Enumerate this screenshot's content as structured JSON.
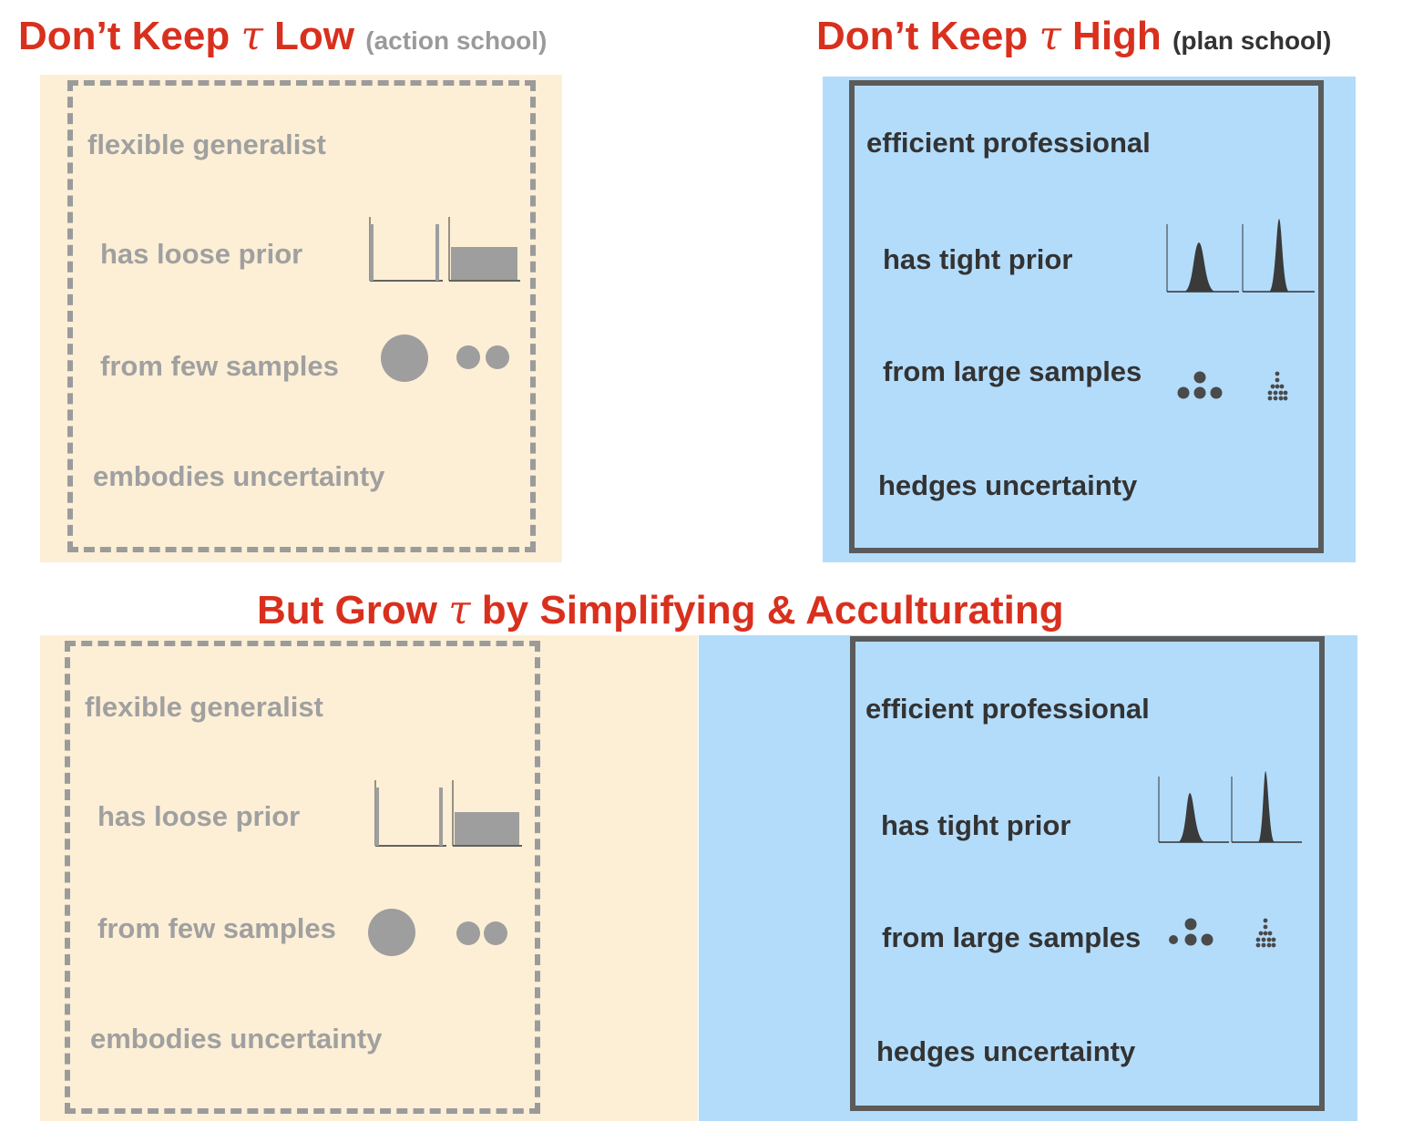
{
  "top_left": {
    "title_prefix": "Don’t Keep",
    "symbol": "τ",
    "title_suffix": "Low",
    "subtitle": "(action school)"
  },
  "top_right": {
    "title_prefix": "Don’t Keep",
    "symbol": "τ",
    "title_suffix": "High",
    "subtitle": "(plan school)"
  },
  "middle": {
    "title_prefix": "But Grow",
    "symbol": "τ",
    "title_suffix": "by Simplifying & Acculturating"
  },
  "action_school": {
    "role": "flexible generalist",
    "prior": "has loose prior",
    "samples": "from few samples",
    "uncertainty": "embodies uncertainty"
  },
  "plan_school": {
    "role": "efficient professional",
    "prior": "has tight prior",
    "samples": "from large samples",
    "uncertainty": "hedges uncertainty"
  },
  "colors": {
    "title_red": "#d9301e",
    "cream_bg": "#fdefd6",
    "blue_bg": "#b3dcfb",
    "grey_text": "#a0a0a0",
    "dark_text": "#333333"
  }
}
